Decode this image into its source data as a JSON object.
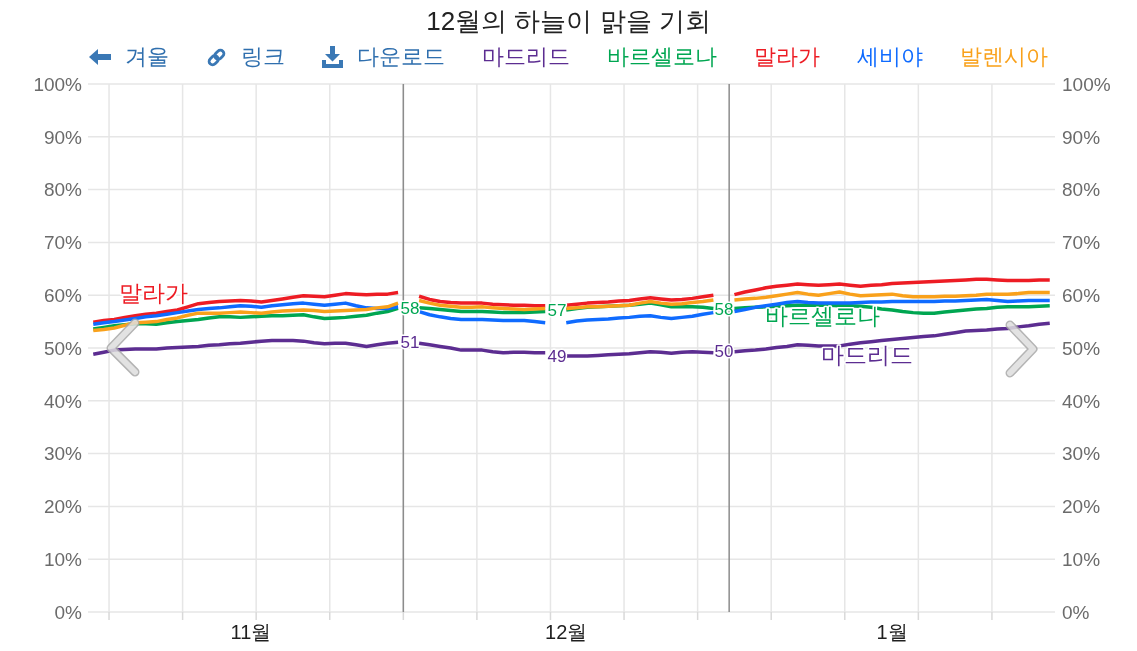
{
  "chart_data": {
    "type": "line",
    "title": "12월의 하늘이 맑을 기회",
    "categories": [
      null,
      null,
      null,
      null,
      null,
      null,
      null,
      null,
      null,
      null,
      null,
      null,
      null,
      null,
      null,
      "11월",
      null,
      null,
      null,
      null,
      null,
      null,
      null,
      null,
      null,
      null,
      null,
      null,
      null,
      null,
      null,
      null,
      null,
      null,
      null,
      null,
      null,
      null,
      null,
      null,
      null,
      null,
      null,
      null,
      null,
      "12월",
      null,
      null,
      null,
      null,
      null,
      null,
      null,
      null,
      null,
      null,
      null,
      null,
      null,
      null,
      null,
      null,
      null,
      null,
      null,
      null,
      null,
      null,
      null,
      null,
      null,
      null,
      null,
      null,
      null,
      null,
      "1월",
      null,
      null,
      null,
      null,
      null,
      null,
      null,
      null,
      null,
      null,
      null,
      null,
      null,
      null,
      null
    ],
    "series": [
      {
        "name": "마드리드",
        "color": "#5c2d91",
        "values": [
          48.8,
          49.2,
          49.6,
          49.7,
          49.8,
          49.8,
          49.8,
          50.0,
          50.1,
          50.2,
          50.3,
          50.5,
          50.6,
          50.8,
          50.9,
          51.1,
          51.3,
          51.4,
          51.4,
          51.4,
          51.3,
          51.0,
          50.8,
          50.9,
          50.9,
          50.6,
          50.3,
          50.6,
          50.9,
          51.1,
          null,
          50.9,
          50.6,
          50.3,
          50.0,
          49.6,
          49.6,
          49.6,
          49.3,
          49.1,
          49.2,
          49.2,
          49.1,
          49.1,
          null,
          48.5,
          48.5,
          48.5,
          48.6,
          48.7,
          48.8,
          48.9,
          49.1,
          49.3,
          49.2,
          49.0,
          49.2,
          49.3,
          49.2,
          49.1,
          null,
          49.3,
          49.5,
          49.6,
          49.8,
          50.1,
          50.3,
          50.6,
          50.5,
          50.4,
          50.4,
          50.4,
          50.7,
          51.0,
          51.2,
          51.4,
          51.6,
          51.8,
          52.0,
          52.2,
          52.3,
          52.6,
          52.9,
          53.2,
          53.3,
          53.4,
          53.6,
          53.7,
          54.0,
          54.2,
          54.5,
          54.7
        ]
      },
      {
        "name": "바르셀로나",
        "color": "#00a651",
        "values": [
          53.6,
          53.9,
          54.2,
          54.4,
          54.6,
          54.6,
          54.5,
          54.8,
          55.0,
          55.2,
          55.4,
          55.7,
          55.9,
          55.9,
          55.8,
          55.9,
          56.0,
          56.1,
          56.1,
          56.2,
          56.3,
          55.9,
          55.6,
          55.7,
          55.8,
          56.0,
          56.2,
          56.6,
          56.9,
          57.5,
          null,
          57.6,
          57.5,
          57.3,
          57.1,
          56.9,
          56.9,
          56.9,
          56.8,
          56.7,
          56.7,
          56.7,
          56.8,
          56.9,
          null,
          57.2,
          57.5,
          57.7,
          57.8,
          57.9,
          58.0,
          58.1,
          58.3,
          58.5,
          58.2,
          57.8,
          57.8,
          57.8,
          57.7,
          57.5,
          null,
          57.5,
          57.6,
          57.7,
          57.8,
          57.9,
          58.0,
          58.1,
          58.1,
          58.1,
          58.1,
          58.0,
          58.0,
          57.9,
          57.7,
          57.4,
          57.2,
          56.9,
          56.7,
          56.6,
          56.6,
          56.8,
          57.0,
          57.2,
          57.4,
          57.5,
          57.7,
          57.8,
          57.8,
          57.8,
          57.9,
          58.0
        ]
      },
      {
        "name": "말라가",
        "color": "#ed1c24",
        "values": [
          54.9,
          55.2,
          55.4,
          55.8,
          56.1,
          56.4,
          56.6,
          56.9,
          57.2,
          57.8,
          58.4,
          58.6,
          58.8,
          58.9,
          59.0,
          58.9,
          58.7,
          59.0,
          59.3,
          59.6,
          59.9,
          59.8,
          59.7,
          60.0,
          60.3,
          60.2,
          60.1,
          60.2,
          60.2,
          60.5,
          null,
          59.8,
          59.2,
          58.8,
          58.6,
          58.5,
          58.5,
          58.5,
          58.3,
          58.2,
          58.1,
          58.1,
          58.0,
          58.0,
          null,
          58.1,
          58.3,
          58.5,
          58.6,
          58.7,
          58.9,
          59.0,
          59.3,
          59.5,
          59.3,
          59.1,
          59.2,
          59.4,
          59.7,
          60.0,
          null,
          60.1,
          60.6,
          61.0,
          61.4,
          61.7,
          61.9,
          62.1,
          62.0,
          61.9,
          62.0,
          62.1,
          61.9,
          61.7,
          61.9,
          62.0,
          62.2,
          62.3,
          62.4,
          62.5,
          62.6,
          62.7,
          62.8,
          62.9,
          63.0,
          63.0,
          62.9,
          62.8,
          62.8,
          62.8,
          62.9,
          62.9
        ]
      },
      {
        "name": "세비야",
        "color": "#0f6bff",
        "values": [
          54.5,
          54.8,
          55.0,
          55.3,
          55.6,
          55.9,
          56.1,
          56.4,
          56.7,
          57.0,
          57.3,
          57.5,
          57.6,
          57.8,
          58.0,
          57.9,
          57.7,
          58.0,
          58.2,
          58.4,
          58.5,
          58.3,
          58.1,
          58.3,
          58.5,
          58.0,
          57.6,
          57.5,
          57.5,
          57.8,
          null,
          56.9,
          56.3,
          55.9,
          55.6,
          55.4,
          55.4,
          55.4,
          55.3,
          55.2,
          55.2,
          55.2,
          55.0,
          54.8,
          null,
          54.8,
          55.1,
          55.3,
          55.4,
          55.5,
          55.7,
          55.8,
          56.0,
          56.1,
          55.8,
          55.6,
          55.8,
          56.0,
          56.4,
          56.7,
          null,
          56.9,
          57.3,
          57.7,
          58.0,
          58.3,
          58.6,
          58.8,
          58.6,
          58.5,
          58.5,
          58.5,
          58.5,
          58.6,
          58.7,
          58.7,
          58.8,
          58.8,
          58.8,
          58.8,
          58.8,
          58.9,
          58.9,
          59.0,
          59.1,
          59.2,
          59.0,
          58.8,
          58.9,
          59.0,
          59.0,
          59.0
        ]
      },
      {
        "name": "발렌시아",
        "color": "#f9a11b",
        "values": [
          53.3,
          53.5,
          53.8,
          54.3,
          54.8,
          54.9,
          55.0,
          55.4,
          55.7,
          56.2,
          56.6,
          56.6,
          56.6,
          56.7,
          56.8,
          56.7,
          56.6,
          56.8,
          57.0,
          57.1,
          57.2,
          57.1,
          56.9,
          57.0,
          57.1,
          57.2,
          57.3,
          57.6,
          57.8,
          58.5,
          null,
          59.0,
          58.5,
          58.1,
          57.9,
          57.7,
          57.7,
          57.8,
          57.6,
          57.5,
          57.4,
          57.3,
          57.4,
          57.5,
          null,
          57.5,
          57.6,
          57.8,
          57.8,
          57.9,
          58.0,
          58.1,
          58.5,
          58.8,
          58.5,
          58.3,
          58.4,
          58.6,
          58.8,
          59.1,
          null,
          59.1,
          59.3,
          59.4,
          59.6,
          59.9,
          60.2,
          60.5,
          60.2,
          60.0,
          60.3,
          60.6,
          60.2,
          59.9,
          60.0,
          60.1,
          60.2,
          59.9,
          59.7,
          59.7,
          59.7,
          59.8,
          59.8,
          59.9,
          60.0,
          60.2,
          60.2,
          60.2,
          60.3,
          60.5,
          60.5,
          60.5
        ]
      }
    ],
    "ylim": [
      0,
      100
    ],
    "yticks": [
      {
        "value": 0,
        "label": "0%"
      },
      {
        "value": 10,
        "label": "10%"
      },
      {
        "value": 20,
        "label": "20%"
      },
      {
        "value": 30,
        "label": "30%"
      },
      {
        "value": 40,
        "label": "40%"
      },
      {
        "value": 50,
        "label": "50%"
      },
      {
        "value": 60,
        "label": "60%"
      },
      {
        "value": 70,
        "label": "70%"
      },
      {
        "value": 80,
        "label": "80%"
      },
      {
        "value": 90,
        "label": "90%"
      },
      {
        "value": 100,
        "label": "100%"
      }
    ],
    "y2lim": [
      0,
      100
    ],
    "y2ticks": [
      {
        "value": 0,
        "label": "0%"
      },
      {
        "value": 10,
        "label": "10%"
      },
      {
        "value": 20,
        "label": "20%"
      },
      {
        "value": 30,
        "label": "30%"
      },
      {
        "value": 40,
        "label": "40%"
      },
      {
        "value": 50,
        "label": "50%"
      },
      {
        "value": 60,
        "label": "60%"
      },
      {
        "value": 70,
        "label": "70%"
      },
      {
        "value": 80,
        "label": "80%"
      },
      {
        "value": 90,
        "label": "90%"
      },
      {
        "value": 100,
        "label": "100%"
      }
    ],
    "annotations": [
      "겨울",
      "링크",
      "다운로드",
      "말라가",
      "바르셀로나",
      "마드리드",
      "58",
      "51",
      "57",
      "49",
      "58",
      "50"
    ],
    "grid": true,
    "legend": "top"
  }
}
